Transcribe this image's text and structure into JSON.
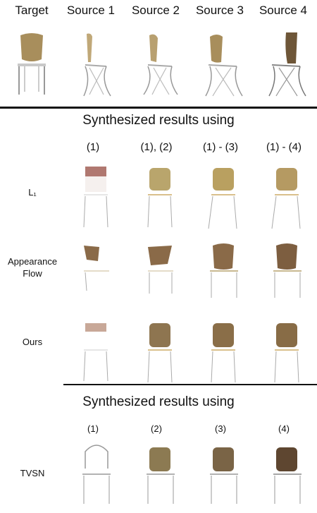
{
  "header": {
    "columns": [
      "Target",
      "Source 1",
      "Source 2",
      "Source 3",
      "Source 4"
    ]
  },
  "section1": {
    "title": "Synthesized results using",
    "columns": [
      "(1)",
      "(1), (2)",
      "(1) - (3)",
      "(1) - (4)"
    ],
    "rows": [
      {
        "label": "L₁"
      },
      {
        "label_line1": "Appearance",
        "label_line2": "Flow"
      },
      {
        "label": "Ours"
      }
    ]
  },
  "section2": {
    "title": "Synthesized results using",
    "columns": [
      "(1)",
      "(2)",
      "(3)",
      "(4)"
    ],
    "rows": [
      {
        "label": "TVSN"
      }
    ]
  },
  "colors": {
    "seat": "#b49a6a",
    "seat_dark": "#6e5638",
    "leg": "#8e8e8e",
    "rule": "#111111"
  }
}
